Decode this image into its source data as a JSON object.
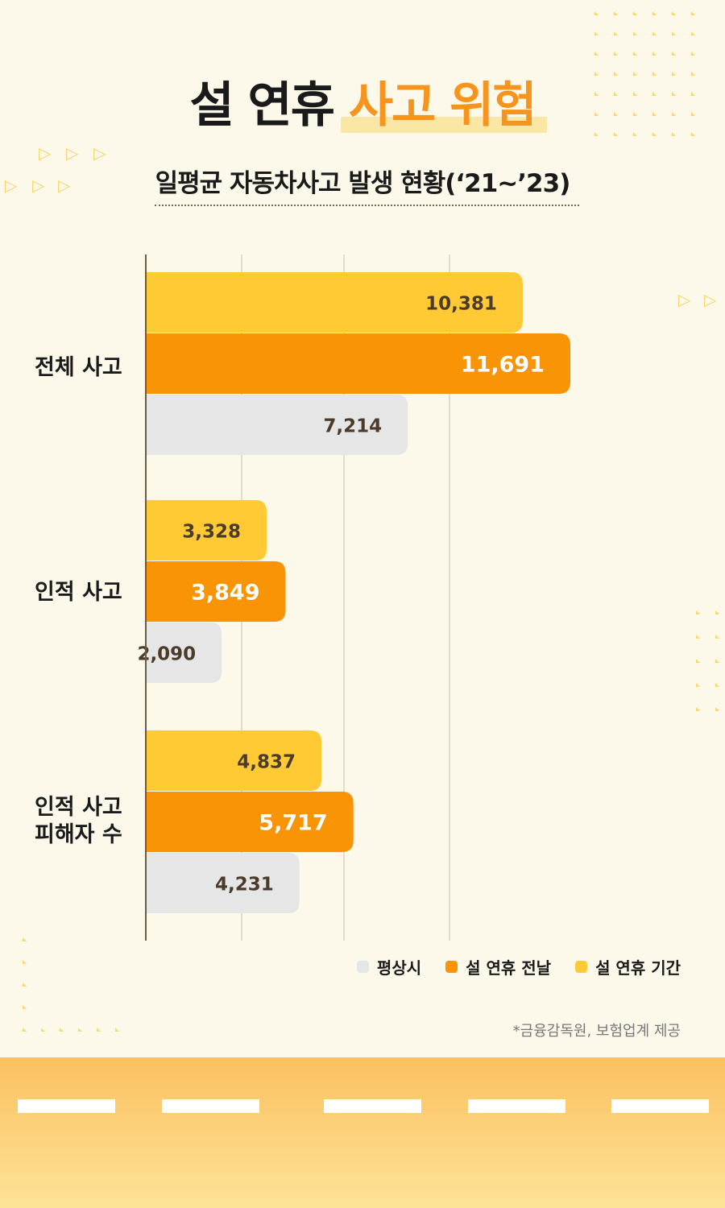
{
  "title": {
    "part1": "설 연휴",
    "part2": "사고 위험"
  },
  "subtitle": "일평균 자동차사고 발생 현황(‘21~’23)",
  "colors": {
    "normal": "#e6e6e6",
    "eve": "#f89406",
    "holiday": "#ffca33",
    "accent": "#f7941d"
  },
  "chart_data": {
    "type": "bar",
    "orientation": "horizontal",
    "categories": [
      "전체 사고",
      "인적 사고",
      "인적 사고\n피해자 수"
    ],
    "series": [
      {
        "name": "설 연휴 기간",
        "color": "#ffca33",
        "values": [
          10381,
          3328,
          4837
        ],
        "labels": [
          "10,381",
          "3,328",
          "4,837"
        ]
      },
      {
        "name": "설 연휴 전날",
        "color": "#f89406",
        "values": [
          11691,
          3849,
          5717
        ],
        "labels": [
          "11,691",
          "3,849",
          "5,717"
        ]
      },
      {
        "name": "평상시",
        "color": "#e6e6e6",
        "values": [
          7214,
          2090,
          4231
        ],
        "labels": [
          "7,214",
          "2,090",
          "4,231"
        ]
      }
    ],
    "grid": true,
    "legend_position": "bottom-right"
  },
  "legend": [
    {
      "label": "평상시",
      "color": "#e6e6e6"
    },
    {
      "label": "설 연휴 전날",
      "color": "#f89406"
    },
    {
      "label": "설 연휴 기간",
      "color": "#ffca33"
    }
  ],
  "source": "*금융감독원, 보험업계 제공"
}
